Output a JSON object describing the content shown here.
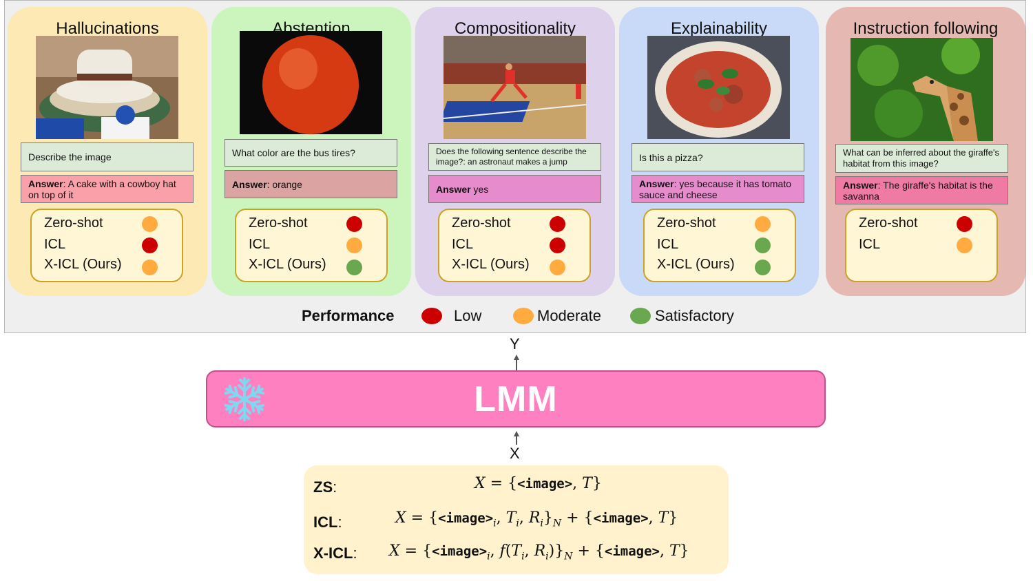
{
  "cards": [
    {
      "title": "Hallucinations",
      "image": "cowboy-hat-cake-photo",
      "question": "Describe the image",
      "answer_label": "Answer",
      "answer_text": ": A cake with a cowboy hat on top of it",
      "rows": [
        {
          "label": "Zero-shot",
          "level": "Moderate"
        },
        {
          "label": "ICL",
          "level": "Low"
        },
        {
          "label": "X-ICL (Ours)",
          "level": "Moderate"
        }
      ],
      "colors": {
        "card": "#fde9b4",
        "answer": "#f9a0a8"
      }
    },
    {
      "title": "Abstention",
      "image": "orange-fruit-photo",
      "question": "What color are the bus tires?",
      "answer_label": "Answer",
      "answer_text": ": orange",
      "rows": [
        {
          "label": "Zero-shot",
          "level": "Low"
        },
        {
          "label": "ICL",
          "level": "Moderate"
        },
        {
          "label": "X-ICL (Ours)",
          "level": "Satisfactory"
        }
      ],
      "colors": {
        "card": "#ccf5bd",
        "answer": "#dca3a3"
      }
    },
    {
      "title": "Compositionality",
      "image": "basketball-jump-photo",
      "question": "Does the following sentence describe the image?: an astronaut makes a jump",
      "answer_label": "Answer",
      "answer_text": " yes",
      "rows": [
        {
          "label": "Zero-shot",
          "level": "Low"
        },
        {
          "label": "ICL",
          "level": "Low"
        },
        {
          "label": "X-ICL (Ours)",
          "level": "Moderate"
        }
      ],
      "colors": {
        "card": "#ddd1ec",
        "answer": "#e68ccc"
      }
    },
    {
      "title": "Explainability",
      "image": "pizza-photo",
      "question": "Is this a pizza?",
      "answer_label": "Answer",
      "answer_text": ": yes because it has tomato sauce and cheese",
      "rows": [
        {
          "label": "Zero-shot",
          "level": "Moderate"
        },
        {
          "label": "ICL",
          "level": "Satisfactory"
        },
        {
          "label": "X-ICL (Ours)",
          "level": "Satisfactory"
        }
      ],
      "colors": {
        "card": "#c9daf8",
        "answer": "#e68ccc"
      }
    },
    {
      "title": "Instruction following",
      "image": "giraffe-photo",
      "question": "What can be inferred about the giraffe's habitat from this image?",
      "answer_label": "Answer",
      "answer_text": ": The giraffe's habitat is the savanna",
      "rows": [
        {
          "label": "Zero-shot",
          "level": "Low"
        },
        {
          "label": "ICL",
          "level": "Moderate"
        }
      ],
      "colors": {
        "card": "#e6b8b2",
        "answer": "#ef7aa3"
      }
    }
  ],
  "legend": {
    "title": "Performance",
    "items": [
      {
        "label": "Low",
        "color": "#cc0000"
      },
      {
        "label": "Moderate",
        "color": "#ffab40"
      },
      {
        "label": "Satisfactory",
        "color": "#6aa84f"
      }
    ]
  },
  "level_colors": {
    "Low": "#cc0000",
    "Moderate": "#ffab40",
    "Satisfactory": "#6aa84f"
  },
  "flow": {
    "output_label": "Y",
    "input_label": "X"
  },
  "model": {
    "label": "LMM",
    "icon": "snowflake-icon",
    "icon_color": "#7fd8f0"
  },
  "formulas": {
    "zs_label": "ZS",
    "icl_label": "ICL",
    "xicl_label": "X-ICL",
    "colon": ":"
  }
}
